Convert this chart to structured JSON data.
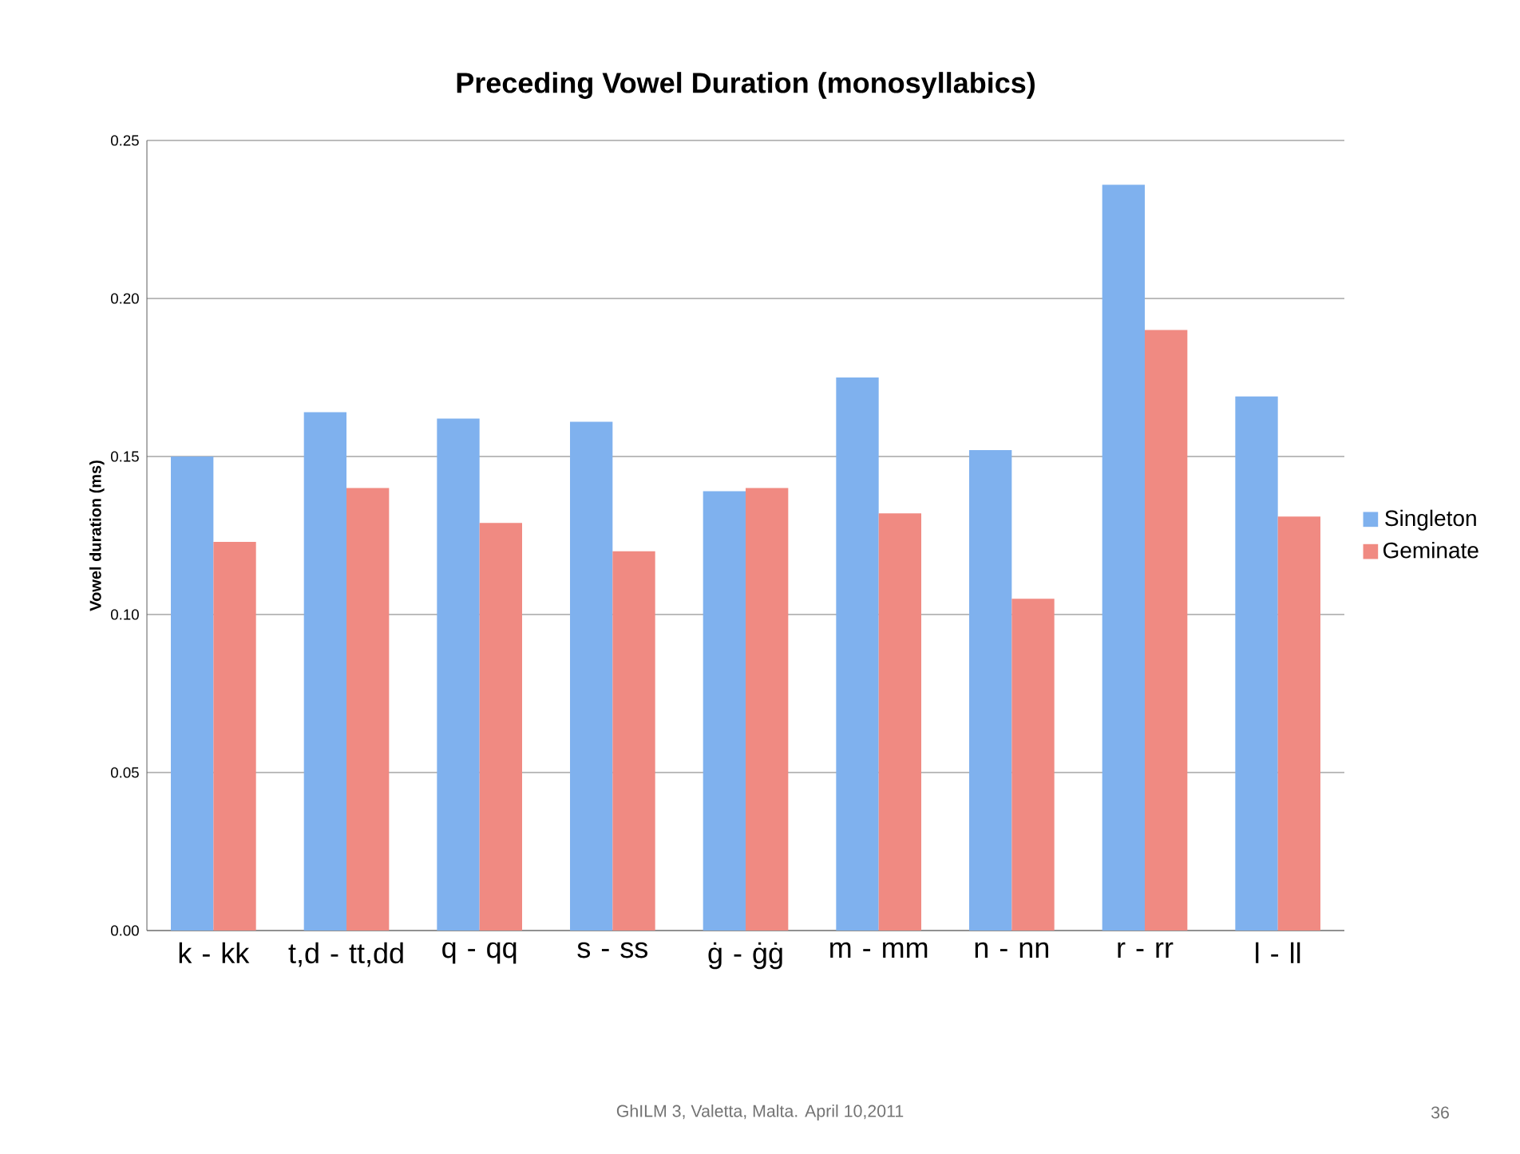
{
  "chart_data": {
    "type": "bar",
    "title": "Preceding Vowel Duration (monosyllabics)",
    "ylabel": "Vowel duration (ms)",
    "categories": [
      "k - kk",
      "t,d - tt,dd",
      "q - qq",
      "s - ss",
      "ġ - ġġ",
      "m - mm",
      "n - nn",
      "r - rr",
      "l - ll"
    ],
    "series": [
      {
        "name": "Singleton",
        "color": "#7fb1ee",
        "values": [
          0.15,
          0.164,
          0.162,
          0.161,
          0.139,
          0.175,
          0.152,
          0.236,
          0.169
        ]
      },
      {
        "name": "Geminate",
        "color": "#f08a82",
        "values": [
          0.123,
          0.14,
          0.129,
          0.12,
          0.14,
          0.132,
          0.105,
          0.19,
          0.131
        ]
      }
    ],
    "ylim": [
      0,
      0.25
    ],
    "yticks": [
      {
        "value": 0,
        "label": "0.00"
      },
      {
        "value": 0.05,
        "label": "0.05"
      },
      {
        "value": 0.1,
        "label": "0.10"
      },
      {
        "value": 0.15,
        "label": "0.15"
      },
      {
        "value": 0.2,
        "label": "0.20"
      },
      {
        "value": 0.25,
        "label": "0.25"
      }
    ],
    "grid": "y",
    "legend": "right",
    "annotations": [
      "GhILM 3, Valetta, Malta. April 10,2011",
      "36"
    ]
  }
}
